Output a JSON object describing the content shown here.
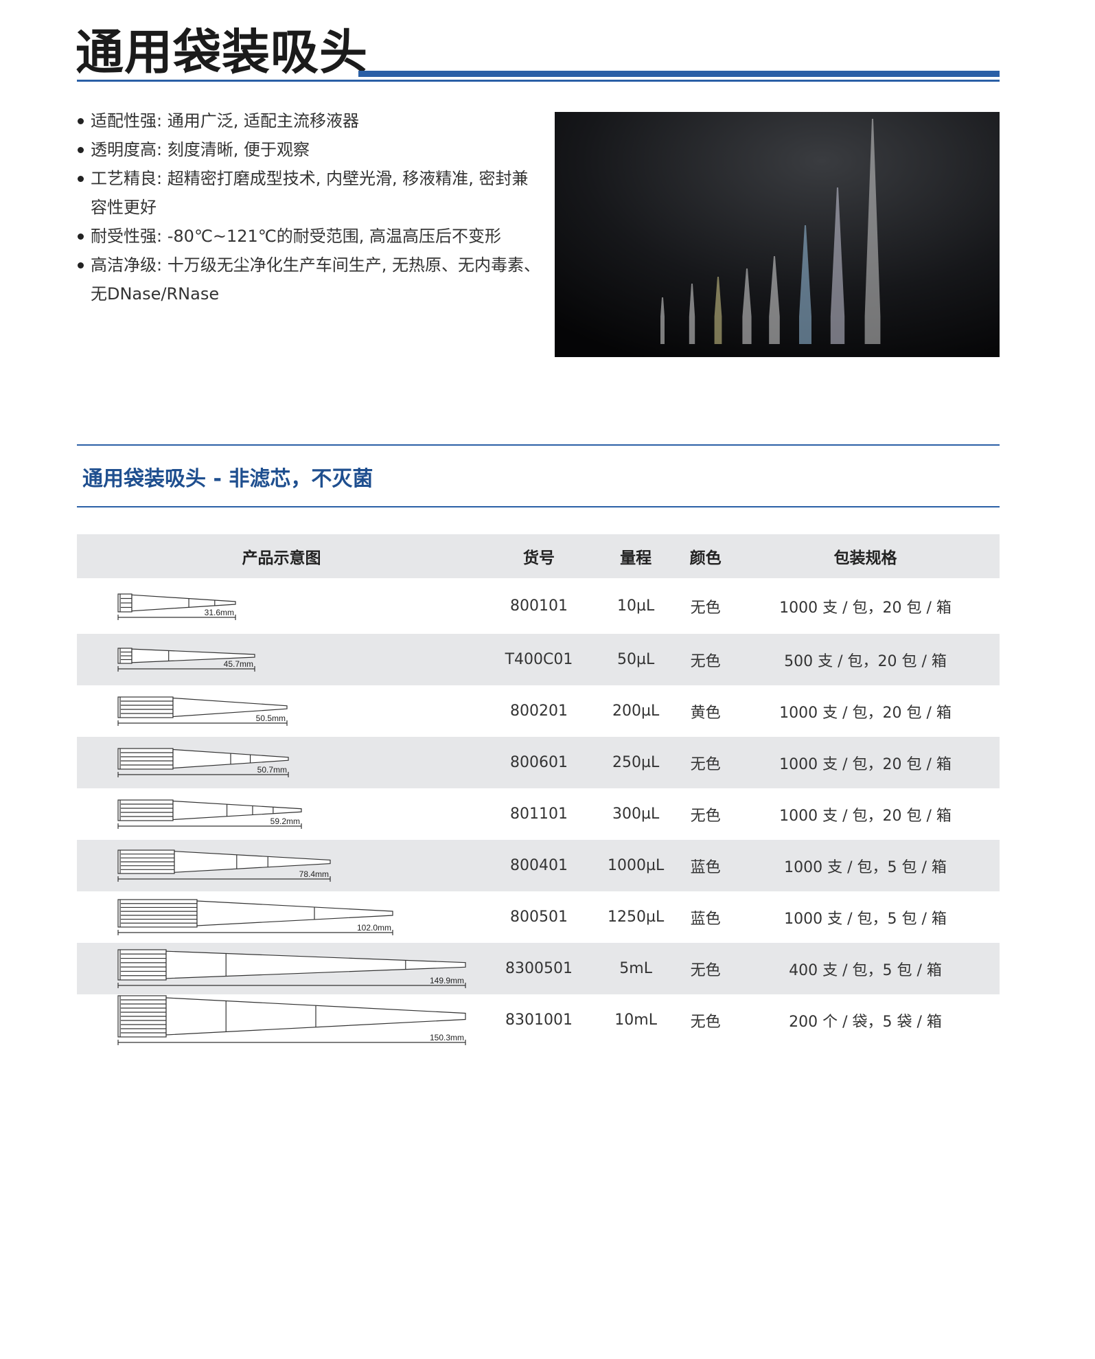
{
  "title": "通用袋装吸头",
  "features": [
    "适配性强: 通用广泛, 适配主流移液器",
    "透明度高: 刻度清晰, 便于观察",
    "工艺精良: 超精密打磨成型技术, 内壁光滑, 移液精准, 密封兼容性更好",
    "耐受性强: -80℃~121℃的耐受范围, 高温高压后不变形",
    "高洁净级: 十万级无尘净化生产车间生产, 无热原、无内毒素、无DNase/RNase"
  ],
  "section_title": "通用袋装吸头 - 非滤芯，不灭菌",
  "colors": {
    "accent": "#2a5fa6",
    "heading": "#1f4f8f",
    "row_alt": "#e6e7e9"
  },
  "table": {
    "headers": [
      "产品示意图",
      "货号",
      "量程",
      "颜色",
      "包装规格"
    ],
    "rows": [
      {
        "length": "31.6mm",
        "code": "800101",
        "range": "10µL",
        "color": "无色",
        "pack": "1000 支 / 包，20 包 / 箱"
      },
      {
        "length": "45.7mm",
        "code": "T400C01",
        "range": "50µL",
        "color": "无色",
        "pack": "500 支 / 包，20 包 / 箱"
      },
      {
        "length": "50.5mm",
        "code": "800201",
        "range": "200µL",
        "color": "黄色",
        "pack": "1000 支 / 包，20 包 / 箱"
      },
      {
        "length": "50.7mm",
        "code": "800601",
        "range": "250µL",
        "color": "无色",
        "pack": "1000 支 / 包，20 包 / 箱"
      },
      {
        "length": "59.2mm",
        "code": "801101",
        "range": "300µL",
        "color": "无色",
        "pack": "1000 支 / 包，20 包 / 箱"
      },
      {
        "length": "78.4mm",
        "code": "800401",
        "range": "1000µL",
        "color": "蓝色",
        "pack": "1000 支 / 包，5 包 / 箱"
      },
      {
        "length": "102.0mm",
        "code": "800501",
        "range": "1250µL",
        "color": "蓝色",
        "pack": "1000 支 / 包，5 包 / 箱"
      },
      {
        "length": "149.9mm",
        "code": "8300501",
        "range": "5mL",
        "color": "无色",
        "pack": "400 支 / 包，5 包 / 箱"
      },
      {
        "length": "150.3mm",
        "code": "8301001",
        "range": "10mL",
        "color": "无色",
        "pack": "200 个 / 袋，5 袋 / 箱"
      }
    ]
  }
}
